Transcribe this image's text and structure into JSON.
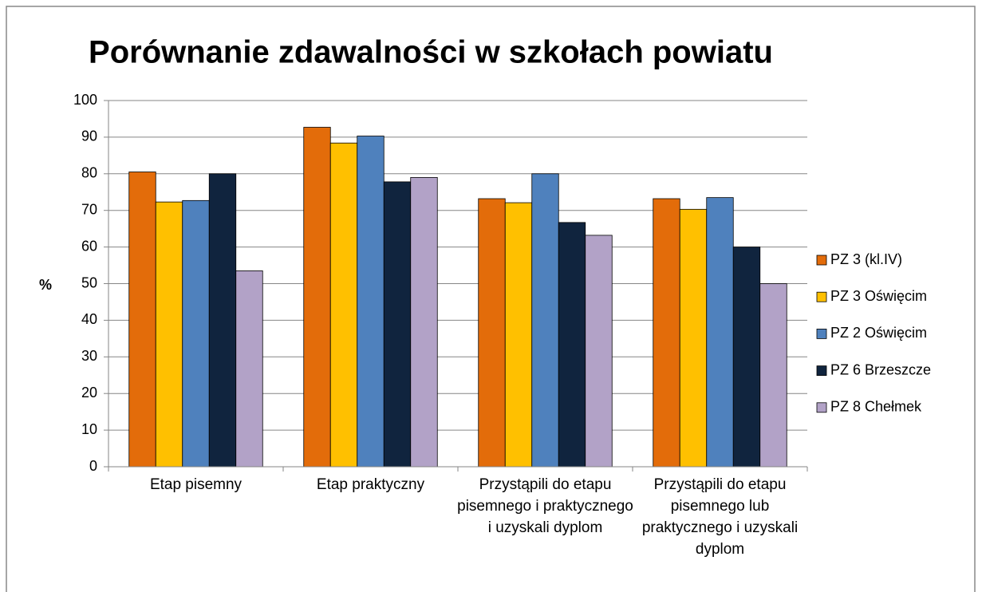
{
  "chart_data": {
    "type": "bar",
    "title": "Porównanie zdawalności w szkołach powiatu",
    "y_label": "%",
    "categories": [
      "Etap pisemny",
      "Etap praktyczny",
      "Przystąpili do etapu pisemnego i praktycznego i uzyskali dyplom",
      "Przystąpili do etapu pisemnego lub praktycznego i uzyskali dyplom"
    ],
    "series": [
      {
        "name": "PZ 3 (kl.IV)",
        "color": "#e36c0a",
        "values": [
          80.5,
          92.7,
          73.2,
          73.2
        ]
      },
      {
        "name": "PZ 3 Oświęcim",
        "color": "#ffc000",
        "values": [
          72.3,
          88.4,
          72.1,
          70.3
        ]
      },
      {
        "name": "PZ 2 Oświęcim",
        "color": "#4f81bd",
        "values": [
          72.7,
          90.3,
          80,
          73.5
        ]
      },
      {
        "name": "PZ 6 Brzeszcze",
        "color": "#10243e",
        "values": [
          80,
          77.8,
          66.7,
          60
        ]
      },
      {
        "name": "PZ 8 Chełmek",
        "color": "#b2a2c7",
        "values": [
          53.5,
          79,
          63.2,
          50
        ]
      }
    ],
    "ylim": [
      0,
      100
    ],
    "yticks": [
      0,
      10,
      20,
      30,
      40,
      50,
      60,
      70,
      80,
      90,
      100
    ],
    "grid": true,
    "legend": "right"
  }
}
